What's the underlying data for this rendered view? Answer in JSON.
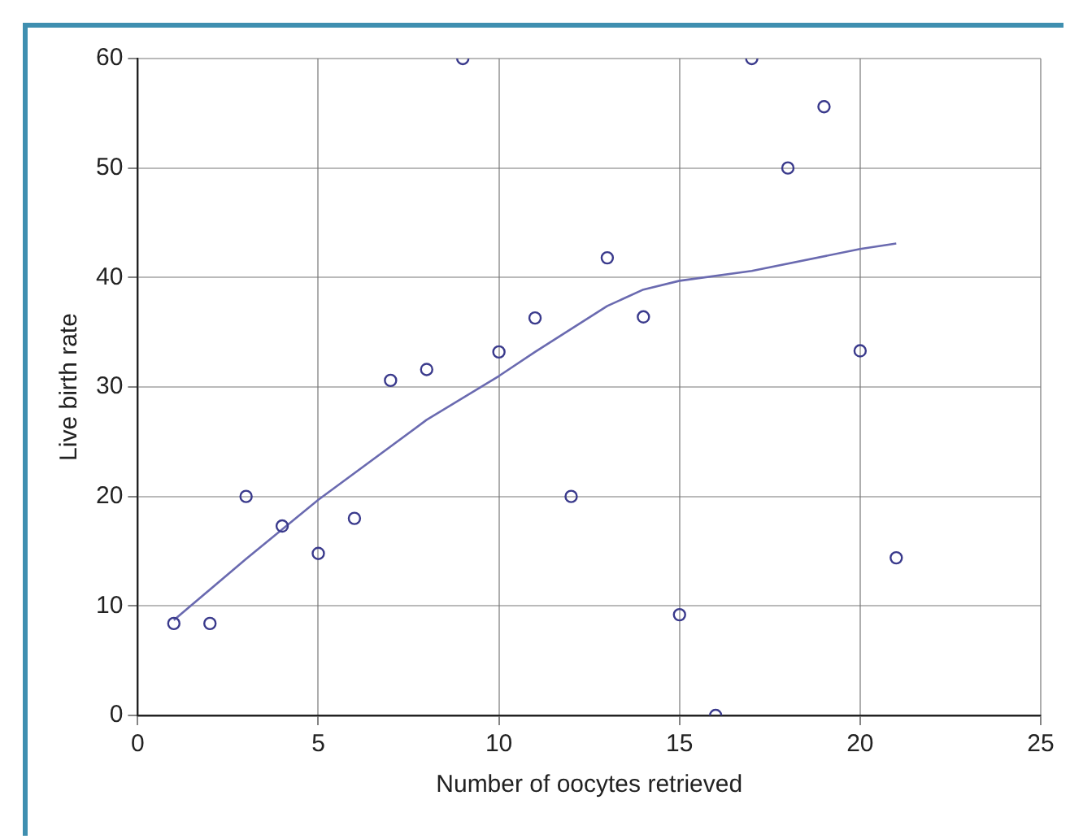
{
  "chart_data": {
    "type": "scatter",
    "xlabel": "Number of oocytes retrieved",
    "ylabel": "Live birth rate",
    "xlim": [
      0,
      25
    ],
    "xticks": [
      0,
      5,
      10,
      15,
      20,
      25
    ],
    "ylim": [
      0,
      60
    ],
    "yticks": [
      0,
      10,
      20,
      30,
      40,
      50,
      60
    ],
    "grid": true,
    "legend": false,
    "series": [
      {
        "marker": "circle",
        "color": "#3a3a8c",
        "x": [
          1,
          2,
          3,
          4,
          5,
          6,
          7,
          8,
          9,
          10,
          11,
          12,
          13,
          14,
          15,
          16,
          17,
          18,
          19,
          20,
          21
        ],
        "values": [
          8.4,
          8.4,
          20,
          17.3,
          14.8,
          18,
          30.6,
          31.6,
          60,
          33.2,
          36.3,
          20,
          41.8,
          36.4,
          9.2,
          0,
          60,
          50,
          55.6,
          33.3,
          14.4
        ]
      },
      {
        "type": "line",
        "marker": "none",
        "color": "#6a6ab0",
        "x": [
          1,
          3,
          5,
          8,
          10,
          11,
          13,
          14,
          15,
          17,
          20,
          21
        ],
        "values": [
          8.7,
          14.3,
          19.7,
          27,
          31,
          33.2,
          37.4,
          38.9,
          39.7,
          40.6,
          42.6,
          43.1
        ]
      }
    ]
  }
}
